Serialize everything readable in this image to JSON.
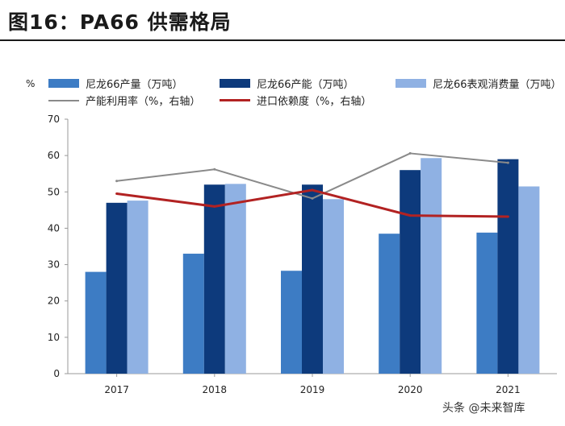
{
  "figure": {
    "title": "图16：PA66 供需格局",
    "unit": "%",
    "watermark": "头条 @未来智库"
  },
  "colors": {
    "production": "#3d7cc4",
    "capacity": "#0d3a7c",
    "consumption": "#8fb1e3",
    "utilization": "#8a8a8a",
    "import_dependency": "#b22222",
    "axis": "#999999"
  },
  "chart_data": {
    "type": "bar",
    "title": "PA66 供需格局",
    "categories": [
      "2017",
      "2018",
      "2019",
      "2020",
      "2021"
    ],
    "ylim": [
      0,
      70
    ],
    "yticks": [
      0,
      10,
      20,
      30,
      40,
      50,
      60,
      70
    ],
    "ylabel": "%",
    "xlabel": "",
    "grid": false,
    "legend_position": "top",
    "series": [
      {
        "name": "尼龙66产量（万吨）",
        "kind": "bar",
        "values": [
          28,
          33,
          28.3,
          38.5,
          38.8
        ]
      },
      {
        "name": "尼龙66产能（万吨）",
        "kind": "bar",
        "values": [
          47,
          52,
          52,
          56,
          59
        ]
      },
      {
        "name": "尼龙66表观消费量（万吨）",
        "kind": "bar",
        "values": [
          47.6,
          52.2,
          48,
          59.3,
          51.5
        ]
      },
      {
        "name": "产能利用率（%，右轴）",
        "kind": "line",
        "values": [
          53,
          56.2,
          48.2,
          60.6,
          58
        ]
      },
      {
        "name": "进口依赖度（%，右轴）",
        "kind": "line",
        "values": [
          49.5,
          46,
          50.5,
          43.5,
          43.2
        ]
      }
    ]
  }
}
